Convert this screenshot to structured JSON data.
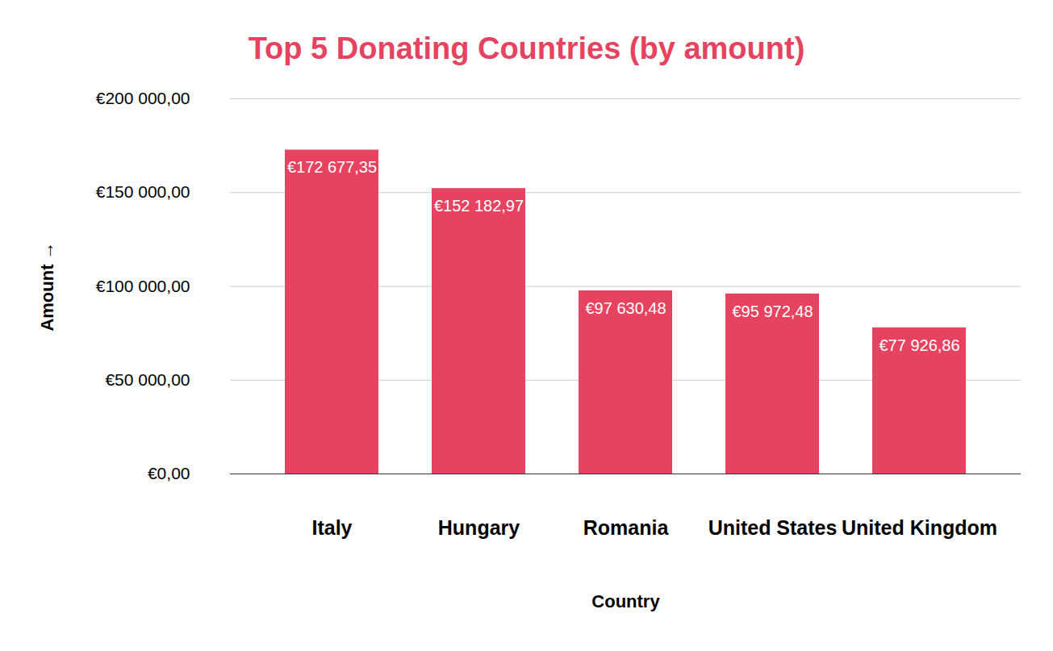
{
  "chart_data": {
    "type": "bar",
    "title": "Top 5 Donating Countries (by amount)",
    "x_label": "Country",
    "y_label": "Amount",
    "categories": [
      "Italy",
      "Hungary",
      "Romania",
      "United States",
      "United Kingdom"
    ],
    "values": [
      172677.35,
      152182.97,
      97630.48,
      95972.48,
      77926.86
    ],
    "value_labels": [
      "€172 677,35",
      "€152 182,97",
      "€97 630,48",
      "€95 972,48",
      "€77 926,86"
    ],
    "color": "#e5435f",
    "ylim": [
      0,
      200000
    ],
    "yticks": [
      {
        "value": 0,
        "label": "€0,00"
      },
      {
        "value": 50000,
        "label": "€50 000,00"
      },
      {
        "value": 100000,
        "label": "€100 000,00"
      },
      {
        "value": 150000,
        "label": "€150 000,00"
      },
      {
        "value": 200000,
        "label": "€200 000,00"
      }
    ],
    "grid": true,
    "data_labels": true
  }
}
